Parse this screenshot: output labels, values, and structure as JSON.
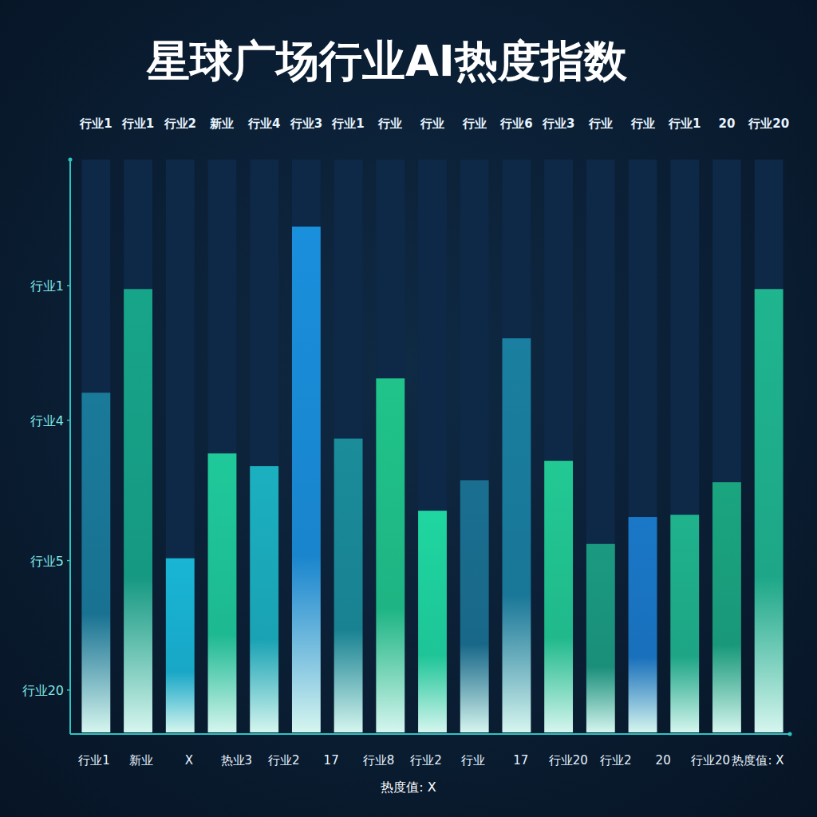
{
  "chart_data": {
    "type": "bar",
    "title": "星球广场行业AI热度指数",
    "categories": [
      "行业1",
      "行业1",
      "行业2",
      "新业",
      "行业4",
      "行业3",
      "行业1",
      "行业",
      "行业",
      "行业",
      "行业6",
      "行业3",
      "行业",
      "行业",
      "行业1",
      "20",
      "行业20"
    ],
    "values": [
      59.3,
      77.4,
      30.4,
      48.7,
      46.5,
      88.3,
      51.3,
      61.8,
      38.7,
      44.0,
      68.8,
      47.4,
      32.9,
      37.6,
      38.0,
      43.7,
      77.4
    ],
    "colors": [
      "#1a7a9a",
      "#17a589",
      "#19b5d5",
      "#1fc99a",
      "#1bb0c0",
      "#1a8fdc",
      "#1a8c9a",
      "#20c48a",
      "#1fd6a0",
      "#1a6f90",
      "#1a7fa0",
      "#22c993",
      "#1b9a80",
      "#1a78c8",
      "#1fb38c",
      "#1aa57f",
      "#1fb58f"
    ],
    "ylim": [
      0,
      100
    ],
    "yticks": [
      {
        "value": 7.4,
        "label": "行业20"
      },
      {
        "value": 30,
        "label": "行业5"
      },
      {
        "value": 54.5,
        "label": "行业4"
      },
      {
        "value": 78,
        "label": "行业1"
      }
    ],
    "annotations": [
      "行业1",
      "新业",
      "X",
      "热业3",
      "行业2",
      "17",
      "行业8",
      "行业2",
      "行业",
      "17",
      "行业20",
      "行业2",
      "20",
      "行业20",
      "热度值: X"
    ],
    "x_label": "热度值: X",
    "grid": false
  }
}
